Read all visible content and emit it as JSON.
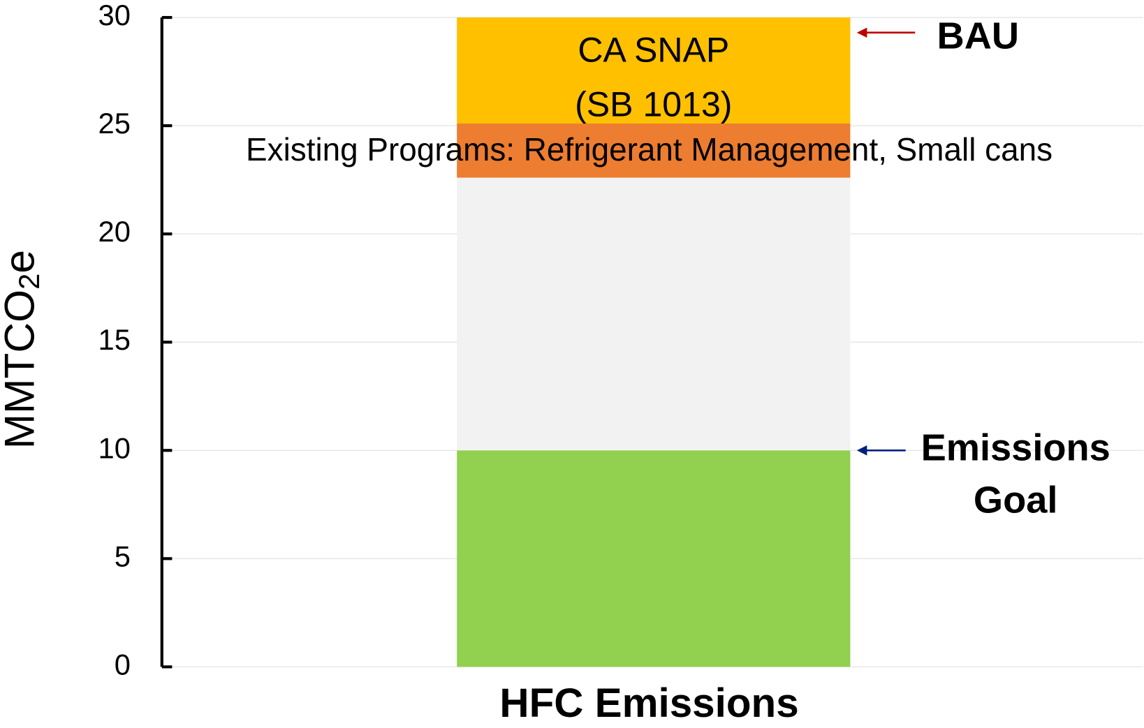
{
  "chart_data": {
    "type": "stacked_bar",
    "categories": [
      "HFC Emissions"
    ],
    "y_label": [
      "MMTCO",
      "2",
      "e"
    ],
    "ylim": [
      0,
      30
    ],
    "yticks": [
      0,
      5,
      10,
      15,
      20,
      25,
      30
    ],
    "grid": true,
    "series": [
      {
        "color": "#92d050",
        "values": [
          10
        ]
      },
      {
        "color": "#f2f2f2",
        "values": [
          12.6
        ]
      },
      {
        "name": "Existing Programs: Refrigerant Management, Small cans",
        "color": "#ed7d31",
        "values": [
          2.5
        ]
      },
      {
        "name": [
          "CA SNAP",
          "(SB 1013)"
        ],
        "color": "#ffc000",
        "values": [
          4.9
        ]
      }
    ],
    "annotations": [
      {
        "text": [
          "BAU"
        ],
        "y": 29.3,
        "color": "#c00000"
      },
      {
        "text": [
          "Emissions",
          "Goal"
        ],
        "y": 10,
        "color": "#002080"
      }
    ]
  }
}
